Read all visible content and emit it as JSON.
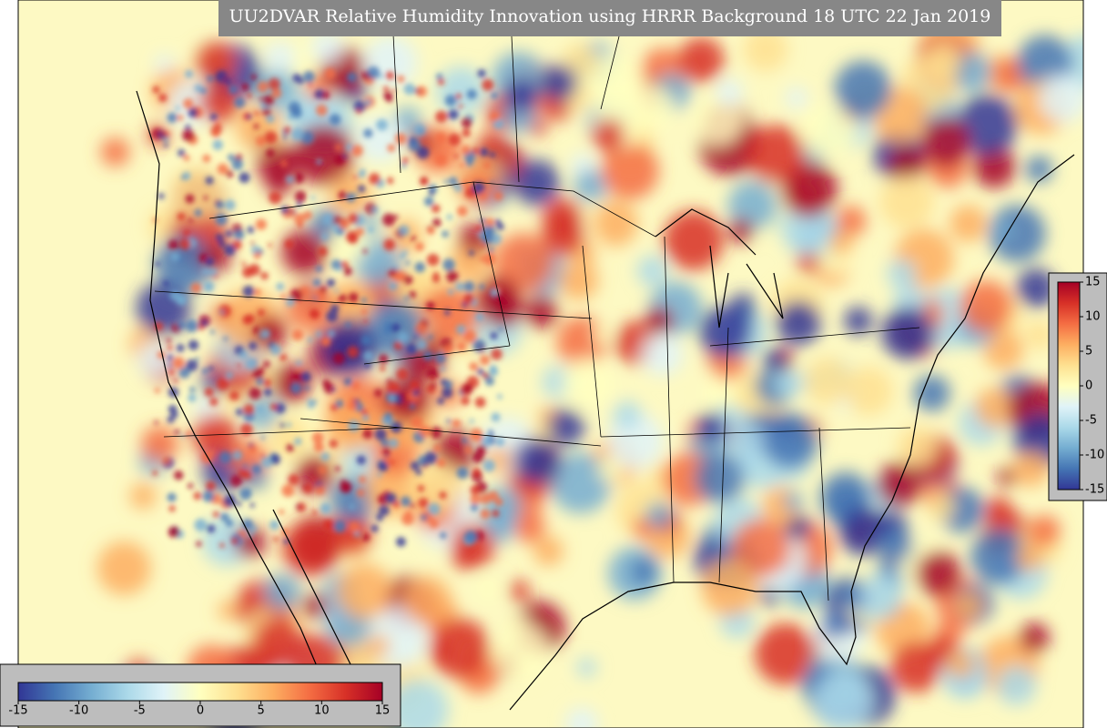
{
  "title": "UU2DVAR Relative Humidity Innovation using HRRR Background 18 UTC 22 Jan 2019",
  "colorbar": {
    "lim": [
      -15,
      15
    ],
    "ticks": [
      -15,
      -10,
      -5,
      0,
      5,
      10,
      15
    ],
    "colors": [
      "#313695",
      "#4575b4",
      "#74add1",
      "#abd9e9",
      "#e0f3f8",
      "#ffffbf",
      "#fee090",
      "#fdae61",
      "#f46d43",
      "#d73027",
      "#a50026"
    ]
  }
}
